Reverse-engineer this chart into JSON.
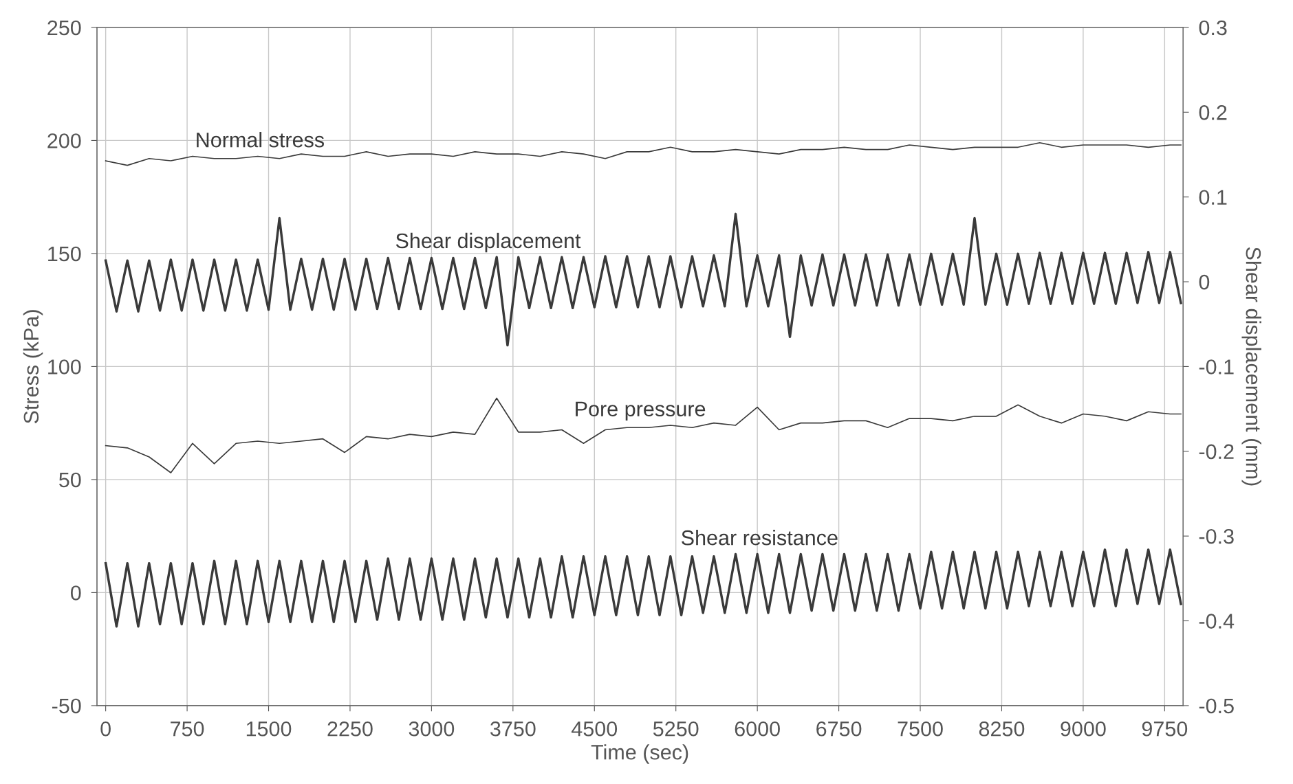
{
  "chart_data": {
    "type": "line",
    "xlabel": "Time (sec)",
    "ylabel": "Stress (kPa)",
    "y2label": "Shear displacement (mm)",
    "xlim": [
      -80,
      9920
    ],
    "xticks": [
      0,
      750,
      1500,
      2250,
      3000,
      3750,
      4500,
      5250,
      6000,
      6750,
      7500,
      8250,
      9000,
      9750
    ],
    "ylim": [
      -50,
      250
    ],
    "yticks": [
      -50,
      0,
      50,
      100,
      150,
      200,
      250
    ],
    "y2lim": [
      -0.5,
      0.3
    ],
    "y2ticks": [
      -0.5,
      -0.4,
      -0.3,
      -0.2,
      -0.1,
      0,
      0.1,
      0.2,
      0.3
    ],
    "grid": true,
    "legend": false,
    "marker": "none",
    "line_style": "solid",
    "series": [
      {
        "name": "Normal stress",
        "color": "#3a3a3a",
        "x": [
          0,
          200,
          400,
          600,
          800,
          1000,
          1200,
          1400,
          1600,
          1800,
          2000,
          2200,
          2400,
          2600,
          2800,
          3000,
          3200,
          3400,
          3600,
          3800,
          4000,
          4200,
          4400,
          4600,
          4800,
          5000,
          5200,
          5400,
          5600,
          5800,
          6000,
          6200,
          6400,
          6600,
          6800,
          7000,
          7200,
          7400,
          7600,
          7800,
          8000,
          8200,
          8400,
          8600,
          8800,
          9000,
          9200,
          9400,
          9600,
          9800,
          9900
        ],
        "values": [
          191,
          189,
          192,
          191,
          193,
          192,
          192,
          193,
          192,
          194,
          193,
          193,
          195,
          193,
          194,
          194,
          193,
          195,
          194,
          194,
          193,
          195,
          194,
          192,
          195,
          195,
          197,
          195,
          195,
          196,
          195,
          194,
          196,
          196,
          197,
          196,
          196,
          198,
          197,
          196,
          197,
          197,
          197,
          199,
          197,
          198,
          198,
          198,
          197,
          198,
          198
        ]
      },
      {
        "name": "Shear displacement",
        "color": "#3a3a3a",
        "axis": "y2",
        "x": [
          0,
          100,
          200,
          300,
          400,
          500,
          600,
          700,
          800,
          900,
          1000,
          1100,
          1200,
          1300,
          1400,
          1500,
          1600,
          1700,
          1800,
          1900,
          2000,
          2100,
          2200,
          2300,
          2400,
          2500,
          2600,
          2700,
          2800,
          2900,
          3000,
          3100,
          3200,
          3300,
          3400,
          3500,
          3600,
          3700,
          3800,
          3900,
          4000,
          4100,
          4200,
          4300,
          4400,
          4500,
          4600,
          4700,
          4800,
          4900,
          5000,
          5100,
          5200,
          5300,
          5400,
          5500,
          5600,
          5700,
          5800,
          5900,
          6000,
          6100,
          6200,
          6300,
          6400,
          6500,
          6600,
          6700,
          6800,
          6900,
          7000,
          7100,
          7200,
          7300,
          7400,
          7500,
          7600,
          7700,
          7800,
          7900,
          8000,
          8100,
          8200,
          8300,
          8400,
          8500,
          8600,
          8700,
          8800,
          8900,
          9000,
          9100,
          9200,
          9300,
          9400,
          9500,
          9600,
          9700,
          9800,
          9900
        ],
        "values": [
          0.025,
          -0.035,
          0.025,
          -0.035,
          0.025,
          -0.034,
          0.026,
          -0.034,
          0.026,
          -0.034,
          0.026,
          -0.034,
          0.026,
          -0.034,
          0.026,
          -0.033,
          0.075,
          -0.033,
          0.027,
          -0.033,
          0.027,
          -0.033,
          0.027,
          -0.033,
          0.027,
          -0.032,
          0.028,
          -0.032,
          0.028,
          -0.032,
          0.028,
          -0.032,
          0.028,
          -0.032,
          0.028,
          -0.031,
          0.029,
          -0.075,
          0.029,
          -0.031,
          0.029,
          -0.031,
          0.029,
          -0.031,
          0.029,
          -0.03,
          0.03,
          -0.03,
          0.03,
          -0.03,
          0.03,
          -0.03,
          0.03,
          -0.03,
          0.03,
          -0.029,
          0.031,
          -0.029,
          0.08,
          -0.029,
          0.031,
          -0.029,
          0.031,
          -0.065,
          0.031,
          -0.028,
          0.032,
          -0.028,
          0.032,
          -0.028,
          0.032,
          -0.028,
          0.032,
          -0.028,
          0.032,
          -0.027,
          0.033,
          -0.027,
          0.033,
          -0.027,
          0.075,
          -0.027,
          0.033,
          -0.027,
          0.033,
          -0.026,
          0.034,
          -0.026,
          0.034,
          -0.026,
          0.034,
          -0.026,
          0.034,
          -0.026,
          0.034,
          -0.025,
          0.035,
          -0.025,
          0.035,
          -0.025
        ]
      },
      {
        "name": "Pore pressure",
        "color": "#3a3a3a",
        "x": [
          0,
          200,
          400,
          600,
          800,
          1000,
          1200,
          1400,
          1600,
          1800,
          2000,
          2200,
          2400,
          2600,
          2800,
          3000,
          3200,
          3400,
          3600,
          3800,
          4000,
          4200,
          4400,
          4600,
          4800,
          5000,
          5200,
          5400,
          5600,
          5800,
          6000,
          6200,
          6400,
          6600,
          6800,
          7000,
          7200,
          7400,
          7600,
          7800,
          8000,
          8200,
          8400,
          8600,
          8800,
          9000,
          9200,
          9400,
          9600,
          9800,
          9900
        ],
        "values": [
          65,
          64,
          60,
          53,
          66,
          57,
          66,
          67,
          66,
          67,
          68,
          62,
          69,
          68,
          70,
          69,
          71,
          70,
          86,
          71,
          71,
          72,
          66,
          72,
          73,
          73,
          74,
          73,
          75,
          74,
          82,
          72,
          75,
          75,
          76,
          76,
          73,
          77,
          77,
          76,
          78,
          78,
          83,
          78,
          75,
          79,
          78,
          76,
          80,
          79,
          79
        ]
      },
      {
        "name": "Shear resistance",
        "color": "#3a3a3a",
        "x": [
          0,
          100,
          200,
          300,
          400,
          500,
          600,
          700,
          800,
          900,
          1000,
          1100,
          1200,
          1300,
          1400,
          1500,
          1600,
          1700,
          1800,
          1900,
          2000,
          2100,
          2200,
          2300,
          2400,
          2500,
          2600,
          2700,
          2800,
          2900,
          3000,
          3100,
          3200,
          3300,
          3400,
          3500,
          3600,
          3700,
          3800,
          3900,
          4000,
          4100,
          4200,
          4300,
          4400,
          4500,
          4600,
          4700,
          4800,
          4900,
          5000,
          5100,
          5200,
          5300,
          5400,
          5500,
          5600,
          5700,
          5800,
          5900,
          6000,
          6100,
          6200,
          6300,
          6400,
          6500,
          6600,
          6700,
          6800,
          6900,
          7000,
          7100,
          7200,
          7300,
          7400,
          7500,
          7600,
          7700,
          7800,
          7900,
          8000,
          8100,
          8200,
          8300,
          8400,
          8500,
          8600,
          8700,
          8800,
          8900,
          9000,
          9100,
          9200,
          9300,
          9400,
          9500,
          9600,
          9700,
          9800,
          9900
        ],
        "values": [
          13,
          -15,
          13,
          -15,
          13,
          -14,
          13,
          -14,
          13,
          -14,
          14,
          -14,
          14,
          -14,
          14,
          -13,
          14,
          -13,
          14,
          -13,
          14,
          -13,
          14,
          -13,
          14,
          -12,
          15,
          -12,
          15,
          -12,
          15,
          -12,
          15,
          -12,
          15,
          -11,
          15,
          -11,
          15,
          -11,
          15,
          -11,
          16,
          -11,
          16,
          -10,
          16,
          -10,
          16,
          -10,
          16,
          -10,
          16,
          -10,
          16,
          -9,
          16,
          -9,
          17,
          -9,
          17,
          -9,
          17,
          -9,
          17,
          -8,
          17,
          -8,
          17,
          -8,
          17,
          -8,
          17,
          -8,
          17,
          -7,
          18,
          -7,
          18,
          -7,
          18,
          -7,
          18,
          -7,
          18,
          -6,
          18,
          -6,
          18,
          -6,
          18,
          -6,
          19,
          -6,
          19,
          -5,
          19,
          -5,
          19,
          -5
        ]
      }
    ]
  }
}
